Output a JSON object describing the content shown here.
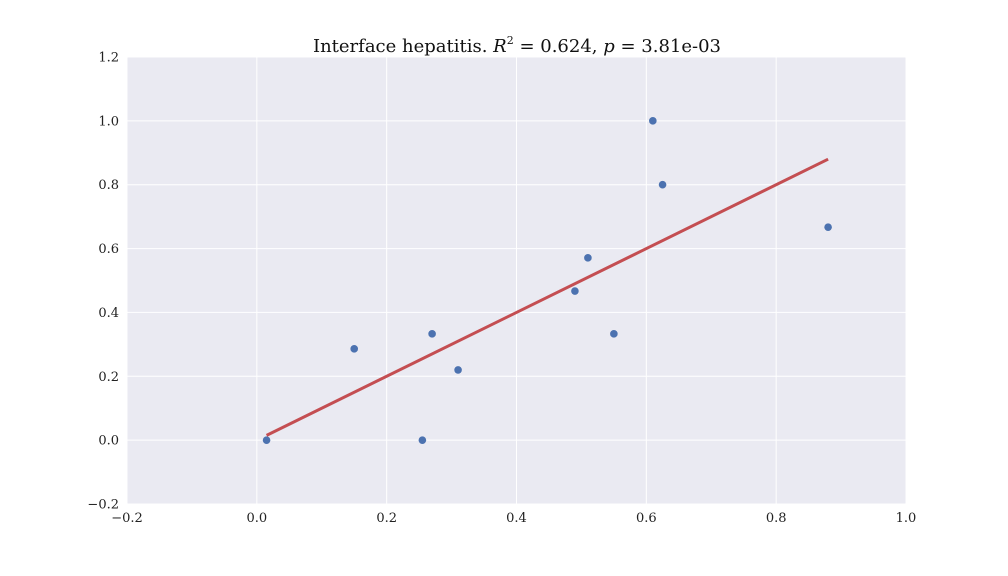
{
  "chart_data": {
    "type": "scatter",
    "title": {
      "prefix": "Interface hepatitis. ",
      "r_symbol": "R",
      "r_exponent": "2",
      "r_value_text": " = 0.624, ",
      "p_symbol": "p",
      "p_value_text": " = 3.81e-03"
    },
    "xlabel": "",
    "ylabel": "",
    "xlim": [
      -0.2,
      1.0
    ],
    "ylim": [
      -0.2,
      1.2
    ],
    "x_ticks": [
      -0.2,
      0.0,
      0.2,
      0.4,
      0.6,
      0.8,
      1.0
    ],
    "x_tick_labels": [
      "−0.2",
      "0.0",
      "0.2",
      "0.4",
      "0.6",
      "0.8",
      "1.0"
    ],
    "y_ticks": [
      -0.2,
      0.0,
      0.2,
      0.4,
      0.6,
      0.8,
      1.0,
      1.2
    ],
    "y_tick_labels": [
      "−0.2",
      "0.0",
      "0.2",
      "0.4",
      "0.6",
      "0.8",
      "1.0",
      "1.2"
    ],
    "grid": true,
    "points": [
      {
        "x": 0.015,
        "y": 0.0
      },
      {
        "x": 0.15,
        "y": 0.286
      },
      {
        "x": 0.255,
        "y": 0.0
      },
      {
        "x": 0.27,
        "y": 0.333
      },
      {
        "x": 0.31,
        "y": 0.22
      },
      {
        "x": 0.49,
        "y": 0.467
      },
      {
        "x": 0.51,
        "y": 0.571
      },
      {
        "x": 0.55,
        "y": 0.333
      },
      {
        "x": 0.61,
        "y": 1.0
      },
      {
        "x": 0.625,
        "y": 0.8
      },
      {
        "x": 0.88,
        "y": 0.667
      }
    ],
    "fit_line": {
      "x": [
        0.015,
        0.88
      ],
      "y": [
        0.015,
        0.88
      ]
    },
    "colors": {
      "background": "#eaeaf2",
      "grid": "#ffffff",
      "points": "#4c72b0",
      "fit_line": "#c44e52"
    }
  }
}
